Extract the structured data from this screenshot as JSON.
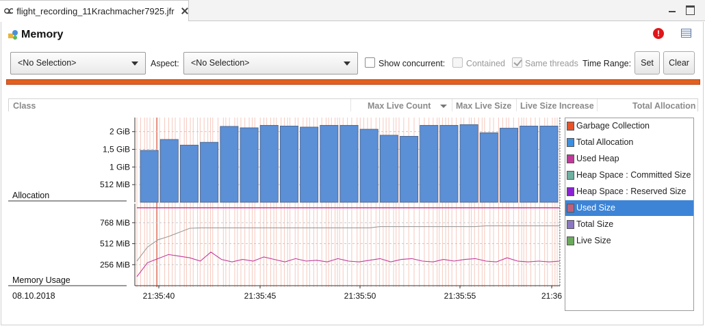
{
  "tab": {
    "title": "flight_recording_11Krachmacher7925.jfr"
  },
  "page": {
    "title": "Memory"
  },
  "toolbar": {
    "class_combo": "<No Selection>",
    "aspect_label": "Aspect:",
    "aspect_combo": "<No Selection>",
    "show_concurrent": "Show concurrent:",
    "contained": "Contained",
    "same_threads": "Same threads",
    "time_range": "Time Range:",
    "set": "Set",
    "clear": "Clear"
  },
  "table": {
    "columns": [
      "Class",
      "Max Live Count",
      "Max Live Size",
      "Live Size Increase",
      "Total Allocation"
    ]
  },
  "legend": {
    "items": [
      {
        "label": "Garbage Collection",
        "color": "#e8532a",
        "selected": false
      },
      {
        "label": "Total Allocation",
        "color": "#3d8fe0",
        "selected": false
      },
      {
        "label": "Used Heap",
        "color": "#c0399b",
        "selected": false
      },
      {
        "label": "Heap Space : Committed Size",
        "color": "#6fb0a0",
        "selected": false
      },
      {
        "label": "Heap Space : Reserved Size",
        "color": "#8a22d4",
        "selected": false
      },
      {
        "label": "Used Size",
        "color": "#c0607a",
        "selected": true
      },
      {
        "label": "Total Size",
        "color": "#8b78c2",
        "selected": false
      },
      {
        "label": "Live Size",
        "color": "#6aaa5a",
        "selected": false
      }
    ]
  },
  "chart_data": [
    {
      "type": "bar",
      "title": "Allocation",
      "y_unit": "GiB",
      "ytick_labels": [
        "512 MiB",
        "1 GiB",
        "1,5 GiB",
        "2 GiB"
      ],
      "ytick_values": [
        0.5,
        1.0,
        1.5,
        2.0
      ],
      "ylim": [
        0,
        2.4
      ],
      "values": [
        1.47,
        1.78,
        1.62,
        1.7,
        2.15,
        2.11,
        2.18,
        2.16,
        2.13,
        2.18,
        2.18,
        2.07,
        1.9,
        1.87,
        2.18,
        2.18,
        2.2,
        1.97,
        2.1,
        2.16,
        2.16
      ],
      "color": "#5b8fd6"
    },
    {
      "type": "line",
      "title": "Memory Usage",
      "y_unit": "MiB",
      "ytick_labels": [
        "256 MiB",
        "512 MiB",
        "768 MiB"
      ],
      "ytick_values": [
        256,
        512,
        768
      ],
      "ylim": [
        0,
        1000
      ],
      "x_labels": [
        "21:35:40",
        "21:35:45",
        "21:35:50",
        "21:35:55",
        "21:36"
      ],
      "date": "08.10.2018",
      "series": [
        {
          "name": "Total Size",
          "color": "#9b9b9b",
          "values": [
            300,
            470,
            560,
            600,
            650,
            700,
            705,
            705,
            705,
            705,
            705,
            705,
            705,
            705,
            705,
            705,
            705,
            705,
            705,
            705,
            705,
            705,
            705,
            720,
            720,
            720,
            720,
            720,
            720,
            720,
            720,
            720,
            720,
            730,
            730,
            730,
            730,
            730,
            730,
            730,
            730
          ]
        },
        {
          "name": "Used Size",
          "color": "#c0399b",
          "values": [
            110,
            280,
            330,
            380,
            360,
            340,
            300,
            410,
            320,
            290,
            320,
            300,
            350,
            320,
            290,
            330,
            300,
            310,
            290,
            330,
            300,
            290,
            310,
            330,
            290,
            320,
            330,
            300,
            290,
            320,
            300,
            320,
            330,
            300,
            290,
            340,
            300,
            290,
            300,
            290,
            300
          ]
        },
        {
          "name": "Used Heap",
          "color": "#c0399b",
          "values": [
            950,
            950,
            950,
            950,
            950,
            950,
            950,
            950,
            950,
            950,
            950,
            950,
            950,
            950,
            950,
            950,
            950,
            950,
            950,
            950,
            950,
            950,
            950,
            950,
            950,
            950,
            950,
            950,
            950,
            950,
            950,
            950,
            950,
            950,
            950,
            950,
            950,
            950,
            950,
            950,
            950
          ]
        }
      ]
    }
  ]
}
